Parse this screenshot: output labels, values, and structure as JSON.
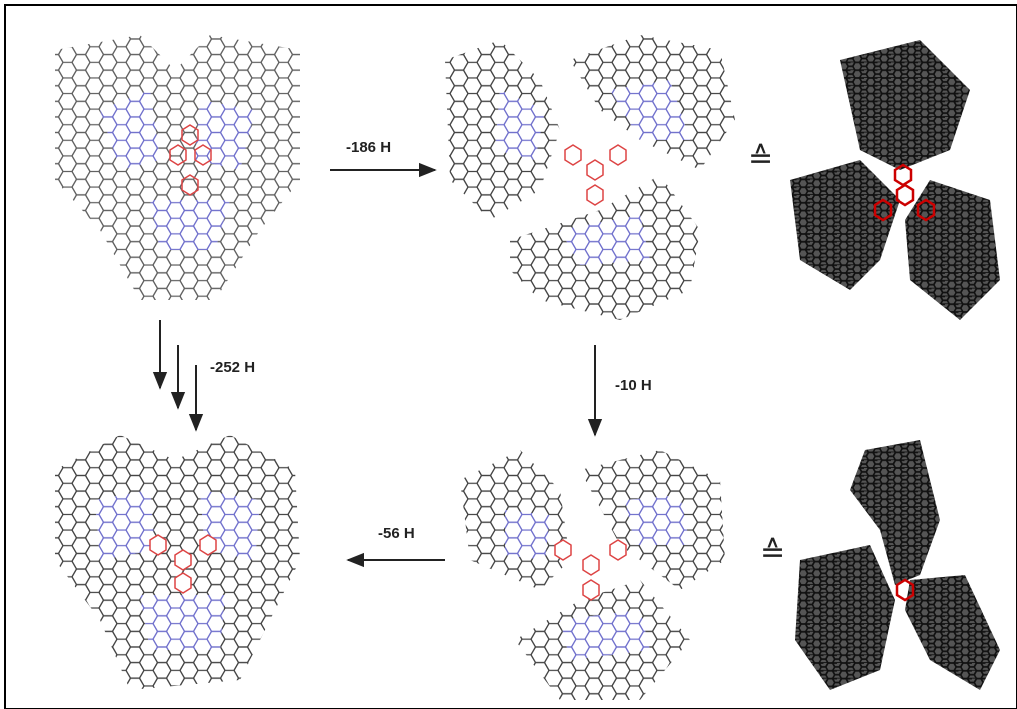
{
  "steps": [
    {
      "label": "-186 H"
    },
    {
      "label": "-252 H"
    },
    {
      "label": "-10 H"
    },
    {
      "label": "-56 H"
    }
  ],
  "equivalence": [
    "≙",
    "≙"
  ]
}
